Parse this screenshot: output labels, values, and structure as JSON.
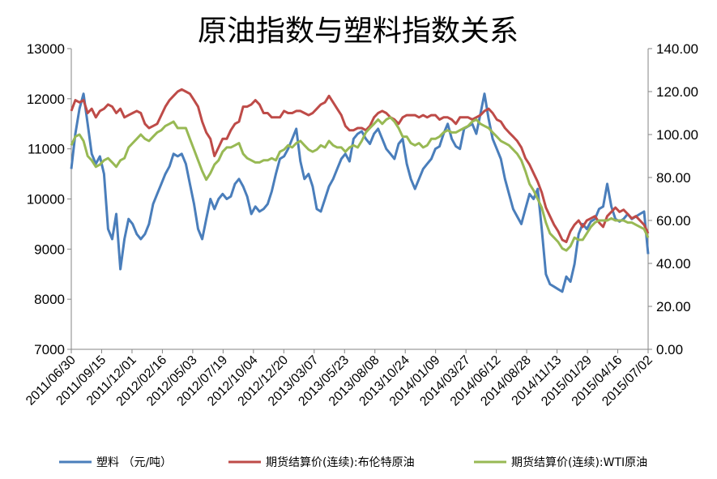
{
  "chart_data": {
    "type": "line",
    "title": "原油指数与塑料指数关系",
    "x_tick_labels": [
      "2011/06/30",
      "2011/09/15",
      "2011/12/01",
      "2012/02/16",
      "2012/05/03",
      "2012/07/19",
      "2012/10/04",
      "2012/12/20",
      "2013/03/07",
      "2013/05/23",
      "2013/08/08",
      "2013/10/24",
      "2014/01/09",
      "2014/03/27",
      "2014/06/12",
      "2014/08/28",
      "2014/11/13",
      "2015/01/29",
      "2015/04/16",
      "2015/07/02"
    ],
    "y_left": {
      "ylim": [
        7000,
        13000
      ],
      "ticks": [
        "7000",
        "8000",
        "9000",
        "10000",
        "11000",
        "12000",
        "13000"
      ]
    },
    "y_right": {
      "ylim": [
        0,
        140
      ],
      "ticks": [
        "0.00",
        "20.00",
        "40.00",
        "60.00",
        "80.00",
        "100.00",
        "120.00",
        "140.00"
      ]
    },
    "grid": false,
    "legend_position": "bottom",
    "series": [
      {
        "name": "塑料 （元/吨）",
        "axis": "left",
        "color": "#4a7ebb",
        "values": [
          10600,
          11300,
          11800,
          12100,
          11500,
          10900,
          10700,
          10850,
          10500,
          9400,
          9200,
          9700,
          8600,
          9200,
          9600,
          9500,
          9300,
          9200,
          9300,
          9500,
          9900,
          10100,
          10300,
          10500,
          10650,
          10900,
          10850,
          10900,
          10700,
          10300,
          9900,
          9400,
          9200,
          9600,
          10000,
          9800,
          10000,
          10100,
          10000,
          10050,
          10300,
          10400,
          10250,
          10050,
          9700,
          9850,
          9750,
          9800,
          9900,
          10150,
          10500,
          10800,
          10850,
          11000,
          11200,
          11400,
          10750,
          10400,
          10500,
          10250,
          9800,
          9750,
          10000,
          10250,
          10400,
          10600,
          10800,
          10900,
          10750,
          11200,
          11300,
          11350,
          11200,
          11100,
          11300,
          11400,
          11200,
          11000,
          10900,
          10800,
          11100,
          11200,
          10700,
          10400,
          10200,
          10400,
          10600,
          10700,
          10800,
          11000,
          11050,
          11300,
          11500,
          11200,
          11050,
          11000,
          11400,
          11450,
          11500,
          11300,
          11700,
          12100,
          11600,
          11200,
          11000,
          10800,
          10400,
          10100,
          9800,
          9650,
          9500,
          9800,
          10100,
          10000,
          10200,
          9400,
          8500,
          8300,
          8250,
          8200,
          8150,
          8450,
          8350,
          8700,
          9300,
          9500,
          9400,
          9550,
          9600,
          9800,
          9850,
          10300,
          9850,
          9600,
          9550,
          9600,
          9700,
          9600,
          9650,
          9700,
          9750,
          8900
        ],
        "legend_label": "塑料 （元/吨）"
      },
      {
        "name": "期货结算价(连续):布伦特原油",
        "axis": "right",
        "color": "#be4b48",
        "values": [
          111,
          116,
          115,
          116,
          110,
          112,
          108,
          111,
          112,
          114,
          113,
          110,
          112,
          108,
          109,
          110,
          111,
          110,
          105,
          103,
          104,
          105,
          109,
          113,
          116,
          118,
          120,
          121,
          120,
          119,
          116,
          113,
          106,
          101,
          98,
          90,
          94,
          98,
          98,
          102,
          105,
          106,
          113,
          113,
          114,
          116,
          114,
          110,
          110,
          108,
          108,
          108,
          111,
          110,
          110,
          111,
          111,
          110,
          109,
          110,
          112,
          114,
          115,
          118,
          115,
          112,
          109,
          104,
          102,
          102,
          103,
          103,
          102,
          104,
          108,
          110,
          111,
          110,
          108,
          107,
          105,
          108,
          109,
          109,
          109,
          108,
          109,
          108,
          109,
          109,
          107,
          108,
          108,
          107,
          105,
          108,
          108,
          108,
          107,
          108,
          109,
          111,
          112,
          110,
          107,
          106,
          103,
          101,
          99,
          97,
          94,
          89,
          86,
          82,
          78,
          73,
          66,
          62,
          58,
          55,
          51,
          50,
          55,
          58,
          60,
          57,
          60,
          61,
          62,
          59,
          57,
          62,
          64,
          66,
          64,
          65,
          63,
          61,
          62,
          60,
          58,
          54
        ],
        "legend_label": "期货结算价(连续):布伦特原油"
      },
      {
        "name": "期货结算价(连续):WTI原油",
        "axis": "right",
        "color": "#98b954",
        "values": [
          95,
          99,
          100,
          97,
          90,
          88,
          85,
          86,
          88,
          89,
          87,
          85,
          88,
          89,
          94,
          96,
          98,
          100,
          98,
          97,
          99,
          101,
          102,
          104,
          105,
          106,
          103,
          103,
          103,
          98,
          93,
          88,
          83,
          79,
          82,
          86,
          88,
          92,
          94,
          94,
          95,
          96,
          91,
          89,
          88,
          87,
          87,
          88,
          88,
          89,
          88,
          92,
          93,
          95,
          94,
          96,
          97,
          95,
          93,
          92,
          93,
          95,
          94,
          97,
          95,
          94,
          94,
          92,
          94,
          95,
          94,
          97,
          101,
          103,
          105,
          107,
          105,
          107,
          108,
          106,
          103,
          99,
          99,
          96,
          95,
          96,
          94,
          95,
          98,
          98,
          99,
          101,
          102,
          101,
          101,
          102,
          103,
          104,
          106,
          107,
          105,
          104,
          103,
          101,
          99,
          97,
          96,
          95,
          93,
          91,
          88,
          83,
          77,
          74,
          70,
          66,
          59,
          54,
          52,
          50,
          47,
          46,
          48,
          52,
          51,
          51,
          54,
          57,
          59,
          60,
          60,
          60,
          61,
          60,
          60,
          60,
          59,
          59,
          58,
          57,
          56,
          52
        ],
        "legend_label": "期货结算价(连续):WTI原油"
      }
    ]
  }
}
